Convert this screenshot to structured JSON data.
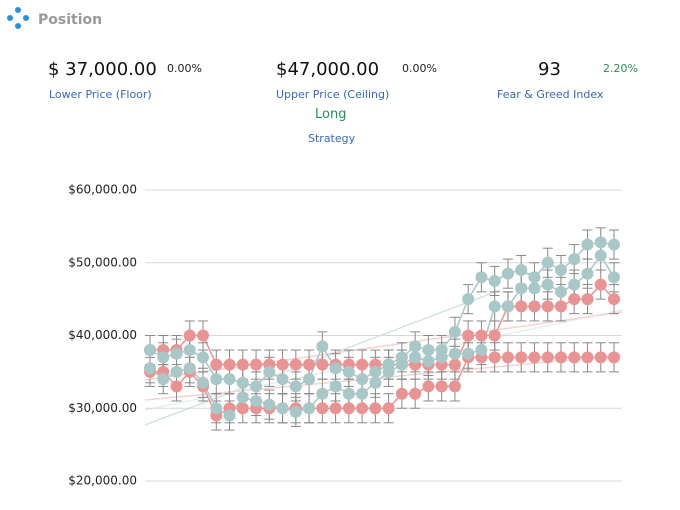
{
  "header": {
    "title": "Position"
  },
  "stats": [
    {
      "value": "$ 37,000.00",
      "change": "0.00%",
      "label": "Lower Price (Floor)"
    },
    {
      "value": "$47,000.00",
      "change": "0.00%",
      "label": "Upper Price (Ceiling)"
    },
    {
      "value": "93",
      "change": "2.20%",
      "label": "Fear & Greed Index"
    }
  ],
  "strategy": {
    "value": "Long",
    "label": "Strategy"
  },
  "chart_data": {
    "type": "line",
    "ylim": [
      20000,
      60000
    ],
    "yticks": [
      {
        "value": 20000,
        "label": "$20,000.00"
      },
      {
        "value": 30000,
        "label": "$30,000.00"
      },
      {
        "value": 40000,
        "label": "$40,000.00"
      },
      {
        "value": 50000,
        "label": "$50,000.00"
      },
      {
        "value": 60000,
        "label": "$60,000.00"
      }
    ],
    "grid": true,
    "error": 2000,
    "series": [
      {
        "color": "#e89494",
        "values": [
          35000,
          35000,
          33000,
          35000,
          33000,
          29000,
          30000,
          30000,
          30000,
          30000,
          30000,
          30000,
          30000,
          30000,
          30000,
          30000,
          30000,
          30000,
          30000,
          32000,
          32000,
          33000,
          33000,
          33000,
          37000,
          37000,
          37000,
          37000,
          37000,
          37000,
          37000,
          37000,
          37000,
          37000,
          37000,
          37000
        ]
      },
      {
        "color": "#e89494",
        "values": [
          38000,
          38000,
          38000,
          40000,
          40000,
          36000,
          36000,
          36000,
          36000,
          36000,
          36000,
          36000,
          36000,
          36000,
          36000,
          36000,
          36000,
          36000,
          36000,
          36000,
          36000,
          36000,
          36000,
          36000,
          40000,
          40000,
          40000,
          44000,
          44000,
          44000,
          44000,
          44000,
          45000,
          45000,
          47000,
          45000
        ]
      },
      {
        "color": "#a9c7c7",
        "values": [
          35500,
          34000,
          35000,
          35500,
          33500,
          30000,
          29000,
          31500,
          31000,
          30500,
          30000,
          29500,
          30000,
          32000,
          33000,
          32000,
          32000,
          33500,
          35000,
          36000,
          37000,
          36500,
          37000,
          37500,
          37500,
          38000,
          44000,
          44000,
          46500,
          46500,
          47000,
          46000,
          47000,
          48500,
          51000,
          48000
        ]
      },
      {
        "color": "#a9c7c7",
        "values": [
          38000,
          37000,
          37500,
          38000,
          37000,
          34000,
          34000,
          33500,
          33000,
          35000,
          34000,
          33000,
          34000,
          38500,
          35500,
          35000,
          34000,
          35000,
          36000,
          37000,
          38500,
          38000,
          38000,
          40500,
          45000,
          48000,
          47500,
          48500,
          49000,
          48000,
          50000,
          49000,
          50500,
          52500,
          52800,
          52500
        ]
      }
    ]
  }
}
